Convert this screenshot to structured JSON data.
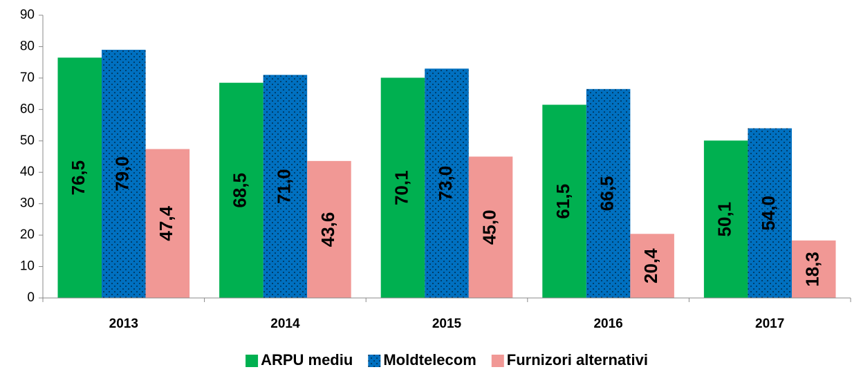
{
  "chart_data": {
    "type": "bar",
    "categories": [
      "2013",
      "2014",
      "2015",
      "2016",
      "2017"
    ],
    "series": [
      {
        "name": "ARPU mediu",
        "color": "#00b050",
        "values": [
          76.5,
          68.5,
          70.1,
          61.5,
          50.1
        ],
        "value_labels": [
          "76,5",
          "68,5",
          "70,1",
          "61,5",
          "50,1"
        ]
      },
      {
        "name": "Moldtelecom",
        "color": "#0070c0",
        "pattern": "dotted",
        "values": [
          79.0,
          71.0,
          73.0,
          66.5,
          54.0
        ],
        "value_labels": [
          "79,0",
          "71,0",
          "73,0",
          "66,5",
          "54,0"
        ]
      },
      {
        "name": "Furnizori alternativi",
        "color": "#f19895",
        "values": [
          47.4,
          43.6,
          45.0,
          20.4,
          18.3
        ],
        "value_labels": [
          "47,4",
          "43,6",
          "45,0",
          "20,4",
          "18,3"
        ]
      }
    ],
    "ylim": [
      0,
      90
    ],
    "yticks": [
      0,
      10,
      20,
      30,
      40,
      50,
      60,
      70,
      80,
      90
    ],
    "legend": "bottom"
  }
}
